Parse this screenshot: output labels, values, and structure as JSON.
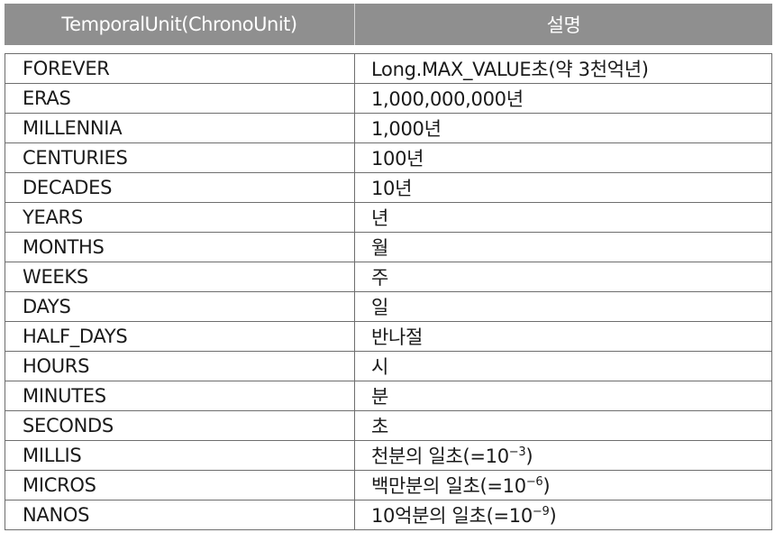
{
  "header": {
    "col1": "TemporalUnit(ChronoUnit)",
    "col2": "설명"
  },
  "rows": [
    {
      "unit": "FOREVER",
      "desc": "Long.MAX_VALUE초(약 3천억년)"
    },
    {
      "unit": "ERAS",
      "desc": "1,000,000,000년"
    },
    {
      "unit": "MILLENNIA",
      "desc": "1,000년"
    },
    {
      "unit": "CENTURIES",
      "desc": "100년"
    },
    {
      "unit": "DECADES",
      "desc": "10년"
    },
    {
      "unit": "YEARS",
      "desc": "년"
    },
    {
      "unit": "MONTHS",
      "desc": "월"
    },
    {
      "unit": "WEEKS",
      "desc": "주"
    },
    {
      "unit": "DAYS",
      "desc": "일"
    },
    {
      "unit": "HALF_DAYS",
      "desc": "반나절"
    },
    {
      "unit": "HOURS",
      "desc": "시"
    },
    {
      "unit": "MINUTES",
      "desc": "분"
    },
    {
      "unit": "SECONDS",
      "desc": "초"
    },
    {
      "unit": "MILLIS",
      "desc": "천분의 일초(=10",
      "exp": "−3",
      "tail": ")"
    },
    {
      "unit": "MICROS",
      "desc": "백만분의 일초(=10",
      "exp": "−6",
      "tail": ")"
    },
    {
      "unit": "NANOS",
      "desc": "10억분의 일초(=10",
      "exp": "−9",
      "tail": ")"
    }
  ]
}
